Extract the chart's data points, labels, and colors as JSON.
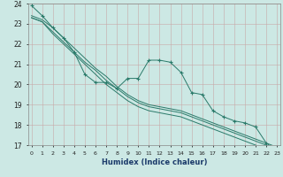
{
  "xlabel": "Humidex (Indice chaleur)",
  "x": [
    0,
    1,
    2,
    3,
    4,
    5,
    6,
    7,
    8,
    9,
    10,
    11,
    12,
    13,
    14,
    15,
    16,
    17,
    18,
    19,
    20,
    21,
    22,
    23
  ],
  "line_jagged": [
    23.9,
    23.4,
    22.8,
    22.3,
    21.6,
    20.5,
    20.1,
    20.1,
    19.8,
    20.3,
    20.3,
    21.2,
    21.2,
    21.1,
    20.6,
    19.6,
    19.5,
    18.7,
    18.4,
    18.2,
    18.1,
    17.9,
    17.1,
    16.7
  ],
  "line_a": [
    23.3,
    23.1,
    22.5,
    22.0,
    21.5,
    21.0,
    20.5,
    20.0,
    19.6,
    19.2,
    18.9,
    18.7,
    18.6,
    18.5,
    18.4,
    18.2,
    18.0,
    17.8,
    17.6,
    17.4,
    17.2,
    17.0,
    16.8,
    16.6
  ],
  "line_b": [
    23.3,
    23.1,
    22.6,
    22.1,
    21.6,
    21.1,
    20.7,
    20.2,
    19.8,
    19.4,
    19.1,
    18.9,
    18.8,
    18.7,
    18.6,
    18.4,
    18.2,
    18.0,
    17.8,
    17.6,
    17.4,
    17.2,
    17.0,
    16.8
  ],
  "line_c": [
    23.4,
    23.2,
    22.8,
    22.3,
    21.8,
    21.3,
    20.8,
    20.4,
    19.9,
    19.5,
    19.2,
    19.0,
    18.9,
    18.8,
    18.7,
    18.5,
    18.3,
    18.1,
    17.9,
    17.7,
    17.5,
    17.3,
    17.1,
    16.9
  ],
  "ylim": [
    17,
    24
  ],
  "yticks": [
    17,
    18,
    19,
    20,
    21,
    22,
    23,
    24
  ],
  "xticks": [
    0,
    1,
    2,
    3,
    4,
    5,
    6,
    7,
    8,
    9,
    10,
    11,
    12,
    13,
    14,
    15,
    16,
    17,
    18,
    19,
    20,
    21,
    22,
    23
  ],
  "line_color": "#2a7a6a",
  "bg_color": "#cce8e4",
  "grid_color": "#c8a8a8"
}
